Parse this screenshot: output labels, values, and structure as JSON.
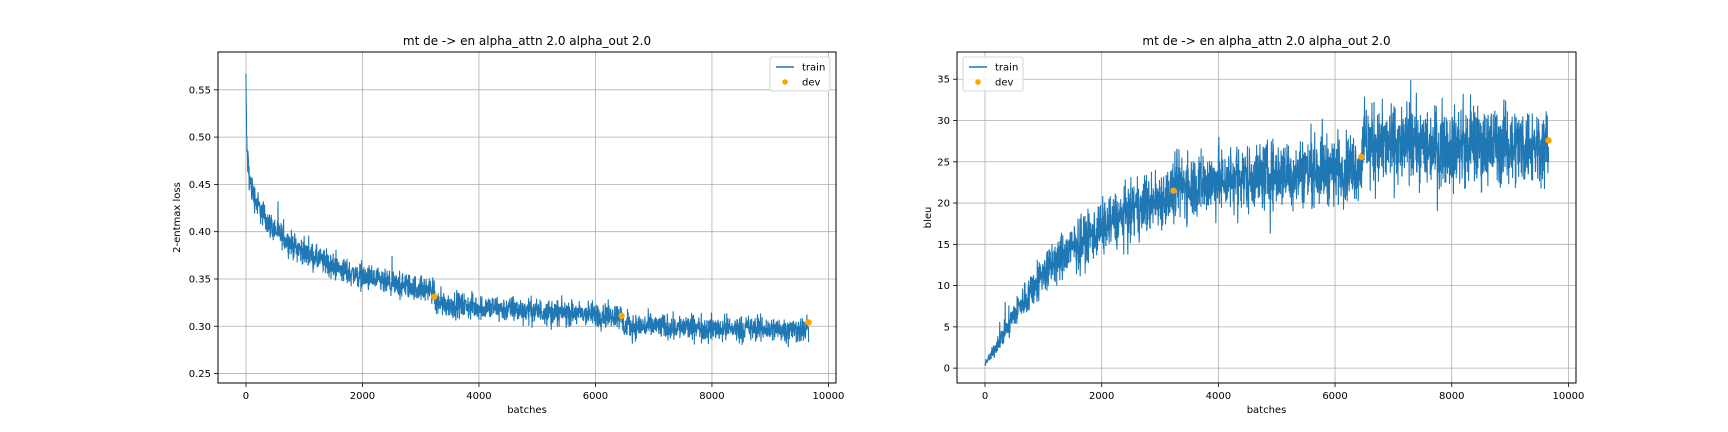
{
  "colors": {
    "train": "#1f77b4",
    "dev": "#ffa500",
    "grid": "#b0b0b0"
  },
  "chart_data": [
    {
      "type": "line",
      "title": "mt de -> en alpha_attn 2.0 alpha_out 2.0",
      "xlabel": "batches",
      "ylabel": "2-entmax loss",
      "xlim": [
        -480,
        10130
      ],
      "ylim": [
        0.24,
        0.59
      ],
      "xticks": [
        0,
        2000,
        4000,
        6000,
        8000,
        10000
      ],
      "xtick_labels": [
        "0",
        "2000",
        "4000",
        "6000",
        "8000",
        "10000"
      ],
      "yticks": [
        0.25,
        0.3,
        0.35,
        0.4,
        0.45,
        0.5,
        0.55
      ],
      "ytick_labels": [
        "0.25",
        "0.30",
        "0.35",
        "0.40",
        "0.45",
        "0.50",
        "0.55"
      ],
      "grid": true,
      "legend_position": "top-right",
      "series": [
        {
          "name": "train",
          "style": "line",
          "x": [
            0,
            10,
            30,
            60,
            100,
            200,
            400,
            700,
            1000,
            1500,
            2000,
            2500,
            3000,
            3230,
            3250,
            3500,
            4000,
            5000,
            6000,
            6450,
            6470,
            7000,
            8000,
            9000,
            9660
          ],
          "y": [
            0.565,
            0.5,
            0.475,
            0.455,
            0.445,
            0.428,
            0.408,
            0.39,
            0.378,
            0.363,
            0.352,
            0.344,
            0.34,
            0.338,
            0.325,
            0.323,
            0.32,
            0.316,
            0.312,
            0.311,
            0.3,
            0.3,
            0.298,
            0.297,
            0.296
          ],
          "noise_band": [
            0.03,
            0.03,
            0.028,
            0.026,
            0.024,
            0.022,
            0.02,
            0.02,
            0.02,
            0.02,
            0.02,
            0.02,
            0.02,
            0.02,
            0.02,
            0.02,
            0.02,
            0.02,
            0.02,
            0.02,
            0.02,
            0.02,
            0.02,
            0.02,
            0.02
          ]
        },
        {
          "name": "dev",
          "style": "scatter",
          "x": [
            3230,
            6450,
            9660
          ],
          "y": [
            0.331,
            0.311,
            0.304
          ]
        }
      ]
    },
    {
      "type": "line",
      "title": "mt de -> en alpha_attn 2.0 alpha_out 2.0",
      "xlabel": "batches",
      "ylabel": "bleu",
      "xlim": [
        -480,
        10130
      ],
      "ylim": [
        -1.8,
        38.3
      ],
      "xticks": [
        0,
        2000,
        4000,
        6000,
        8000,
        10000
      ],
      "xtick_labels": [
        "0",
        "2000",
        "4000",
        "6000",
        "8000",
        "10000"
      ],
      "yticks": [
        0,
        5,
        10,
        15,
        20,
        25,
        30,
        35
      ],
      "ytick_labels": [
        "0",
        "5",
        "10",
        "15",
        "20",
        "25",
        "30",
        "35"
      ],
      "grid": true,
      "legend_position": "top-left",
      "series": [
        {
          "name": "train",
          "style": "line",
          "x": [
            0,
            100,
            300,
            500,
            800,
            1000,
            1500,
            2000,
            2500,
            3000,
            3230,
            3250,
            3500,
            4000,
            5000,
            6000,
            6450,
            6470,
            7000,
            8000,
            9000,
            9660
          ],
          "y": [
            0.5,
            1.5,
            4.0,
            6.5,
            9.5,
            11.5,
            14.5,
            17.0,
            19.0,
            20.5,
            21.2,
            22.0,
            22.2,
            22.7,
            23.5,
            24.2,
            24.5,
            27.0,
            27.0,
            27.0,
            27.0,
            27.0
          ],
          "noise_band": [
            0.5,
            1.0,
            2.0,
            2.8,
            3.5,
            4.0,
            4.5,
            5.0,
            5.0,
            5.5,
            5.5,
            6.0,
            6.0,
            6.0,
            6.0,
            6.0,
            6.0,
            7.0,
            7.0,
            7.0,
            7.0,
            7.0
          ]
        },
        {
          "name": "dev",
          "style": "scatter",
          "x": [
            3230,
            6450,
            9660
          ],
          "y": [
            21.5,
            25.6,
            27.6
          ]
        }
      ]
    }
  ]
}
